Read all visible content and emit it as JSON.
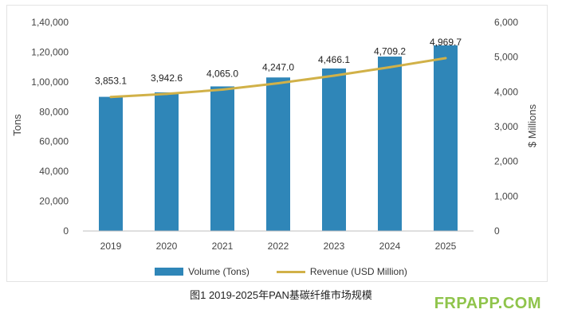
{
  "chart_data": {
    "type": "bar",
    "categories": [
      "2019",
      "2020",
      "2021",
      "2022",
      "2023",
      "2024",
      "2025"
    ],
    "series": [
      {
        "name": "Volume (Tons)",
        "type": "bar",
        "axis": "left",
        "values": [
          90000,
          93000,
          97000,
          103000,
          109000,
          117000,
          124500
        ]
      },
      {
        "name": "Revenue (USD Million)",
        "type": "line",
        "axis": "right",
        "values": [
          3853.1,
          3942.6,
          4065.0,
          4247.0,
          4466.1,
          4709.2,
          4969.7
        ]
      }
    ],
    "data_labels": [
      "3,853.1",
      "3,942.6",
      "4,065.0",
      "4,247.0",
      "4,466.1",
      "4,709.2",
      "4,969.7"
    ],
    "ylabel": "Tons",
    "y2label": "$ Millions",
    "ylim": [
      0,
      140000
    ],
    "y2lim": [
      0,
      6000
    ],
    "yticks": [
      "0",
      "20,000",
      "40,000",
      "60,000",
      "80,000",
      "1,00,000",
      "1,20,000",
      "1,40,000"
    ],
    "y2ticks": [
      "0",
      "1,000",
      "2,000",
      "3,000",
      "4,000",
      "5,000",
      "6,000"
    ],
    "legend": [
      "Volume (Tons)",
      "Revenue (USD Million)"
    ],
    "legend_position": "bottom",
    "colors": {
      "bar": "#2f86b8",
      "line": "#d1b148"
    }
  },
  "caption": "图1 2019-2025年PAN基碳纤维市场规模",
  "watermark": "FRPAPP.COM"
}
